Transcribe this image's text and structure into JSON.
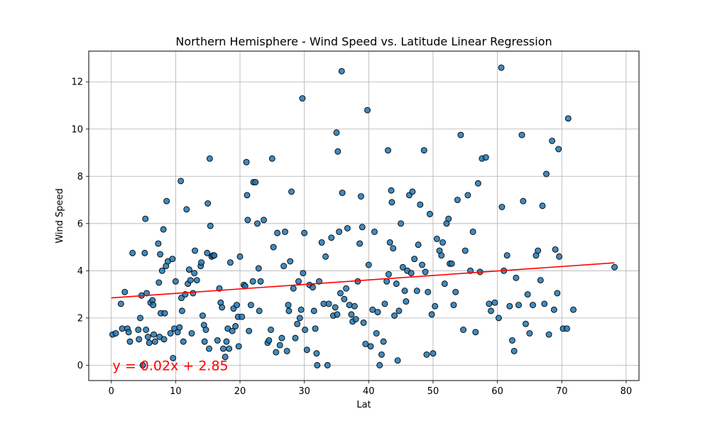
{
  "chart_data": {
    "type": "scatter",
    "title": "Northern Hemisphere - Wind Speed vs. Latitude Linear Regression",
    "xlabel": "Lat",
    "ylabel": "Wind Speed",
    "xlim": [
      -3.5,
      82
    ],
    "ylim": [
      -0.65,
      13.3
    ],
    "xticks": [
      0,
      10,
      20,
      30,
      40,
      50,
      60,
      70,
      80
    ],
    "yticks": [
      0,
      2,
      4,
      6,
      8,
      10,
      12
    ],
    "grid": true,
    "point_color": "#1f77b4",
    "point_edge_color": "#000000",
    "line_color": "#ff0000",
    "regression": {
      "slope": 0.019,
      "intercept": 2.85,
      "x_range": [
        0.0,
        78.2
      ],
      "equation_label": "y = 0.02x + 2.85",
      "label_anchor": {
        "x": 0.2,
        "y": 0.0
      }
    },
    "points": [
      [
        0.2,
        1.3
      ],
      [
        0.7,
        1.35
      ],
      [
        1.5,
        2.6
      ],
      [
        1.7,
        1.55
      ],
      [
        2.1,
        3.1
      ],
      [
        2.5,
        1.55
      ],
      [
        2.7,
        1.4
      ],
      [
        2.9,
        1.0
      ],
      [
        3.3,
        4.75
      ],
      [
        4.2,
        1.5
      ],
      [
        4.3,
        1.1
      ],
      [
        4.5,
        2.0
      ],
      [
        4.7,
        2.95
      ],
      [
        4.9,
        0.0
      ],
      [
        5.2,
        4.75
      ],
      [
        5.3,
        6.2
      ],
      [
        5.4,
        1.5
      ],
      [
        5.5,
        3.05
      ],
      [
        5.7,
        1.2
      ],
      [
        5.9,
        0.95
      ],
      [
        6.1,
        2.65
      ],
      [
        6.4,
        2.75
      ],
      [
        6.5,
        2.55
      ],
      [
        6.6,
        1.3
      ],
      [
        6.8,
        1.0
      ],
      [
        7.3,
        5.15
      ],
      [
        7.4,
        3.5
      ],
      [
        7.5,
        1.2
      ],
      [
        7.6,
        4.7
      ],
      [
        7.7,
        2.2
      ],
      [
        7.9,
        4.0
      ],
      [
        8.1,
        5.75
      ],
      [
        8.2,
        1.1
      ],
      [
        8.3,
        2.2
      ],
      [
        8.5,
        4.2
      ],
      [
        8.6,
        6.95
      ],
      [
        8.8,
        4.4
      ],
      [
        9.2,
        1.35
      ],
      [
        9.5,
        4.5
      ],
      [
        9.6,
        0.3
      ],
      [
        9.8,
        1.55
      ],
      [
        10.0,
        3.55
      ],
      [
        10.3,
        1.4
      ],
      [
        10.6,
        1.6
      ],
      [
        10.8,
        7.8
      ],
      [
        10.9,
        2.85
      ],
      [
        11.0,
        2.3
      ],
      [
        11.2,
        1.0
      ],
      [
        11.5,
        3.0
      ],
      [
        11.7,
        6.6
      ],
      [
        11.9,
        3.45
      ],
      [
        12.1,
        4.05
      ],
      [
        12.3,
        3.6
      ],
      [
        12.5,
        1.35
      ],
      [
        12.7,
        3.05
      ],
      [
        12.9,
        3.9
      ],
      [
        13.0,
        4.85
      ],
      [
        13.3,
        3.6
      ],
      [
        13.9,
        4.2
      ],
      [
        14.0,
        4.35
      ],
      [
        14.2,
        2.1
      ],
      [
        14.4,
        1.7
      ],
      [
        14.5,
        1.0
      ],
      [
        14.7,
        1.5
      ],
      [
        14.9,
        4.75
      ],
      [
        15.0,
        6.85
      ],
      [
        15.2,
        0.7
      ],
      [
        15.3,
        8.75
      ],
      [
        15.4,
        5.9
      ],
      [
        15.6,
        4.6
      ],
      [
        15.8,
        4.65
      ],
      [
        16.0,
        4.65
      ],
      [
        16.5,
        1.05
      ],
      [
        16.8,
        3.25
      ],
      [
        17.0,
        2.65
      ],
      [
        17.2,
        2.45
      ],
      [
        17.4,
        0.7
      ],
      [
        17.7,
        0.35
      ],
      [
        17.9,
        1.0
      ],
      [
        18.1,
        1.55
      ],
      [
        18.3,
        0.7
      ],
      [
        18.5,
        4.35
      ],
      [
        18.8,
        1.45
      ],
      [
        19.0,
        2.4
      ],
      [
        19.3,
        1.65
      ],
      [
        19.5,
        2.55
      ],
      [
        19.7,
        2.05
      ],
      [
        19.8,
        0.8
      ],
      [
        20.0,
        4.6
      ],
      [
        20.3,
        2.05
      ],
      [
        20.6,
        3.4
      ],
      [
        20.8,
        3.35
      ],
      [
        21.0,
        8.6
      ],
      [
        21.1,
        7.2
      ],
      [
        21.2,
        6.15
      ],
      [
        21.4,
        1.45
      ],
      [
        21.7,
        2.55
      ],
      [
        22.0,
        3.55
      ],
      [
        22.1,
        7.75
      ],
      [
        22.4,
        7.75
      ],
      [
        22.7,
        6.0
      ],
      [
        22.9,
        4.1
      ],
      [
        23.0,
        2.3
      ],
      [
        23.2,
        3.55
      ],
      [
        23.7,
        6.15
      ],
      [
        24.3,
        0.95
      ],
      [
        24.5,
        1.05
      ],
      [
        24.8,
        1.5
      ],
      [
        25.0,
        8.75
      ],
      [
        25.2,
        5.0
      ],
      [
        25.6,
        0.55
      ],
      [
        25.8,
        5.6
      ],
      [
        26.2,
        0.85
      ],
      [
        26.5,
        1.15
      ],
      [
        26.8,
        4.2
      ],
      [
        27.0,
        5.65
      ],
      [
        27.3,
        0.6
      ],
      [
        27.5,
        2.55
      ],
      [
        27.6,
        2.3
      ],
      [
        27.8,
        4.4
      ],
      [
        28.0,
        7.35
      ],
      [
        28.3,
        3.25
      ],
      [
        28.6,
        1.15
      ],
      [
        28.9,
        1.75
      ],
      [
        29.1,
        3.55
      ],
      [
        29.3,
        2.0
      ],
      [
        29.5,
        2.35
      ],
      [
        29.7,
        11.3
      ],
      [
        29.8,
        3.9
      ],
      [
        30.0,
        5.6
      ],
      [
        30.1,
        1.5
      ],
      [
        30.4,
        0.65
      ],
      [
        30.8,
        3.4
      ],
      [
        31.3,
        3.3
      ],
      [
        31.5,
        2.3
      ],
      [
        31.7,
        1.55
      ],
      [
        31.9,
        0.5
      ],
      [
        32.0,
        0.0
      ],
      [
        32.3,
        3.55
      ],
      [
        32.7,
        5.2
      ],
      [
        33.0,
        2.6
      ],
      [
        33.3,
        4.6
      ],
      [
        33.6,
        0.0
      ],
      [
        33.8,
        2.6
      ],
      [
        34.2,
        5.4
      ],
      [
        34.5,
        2.1
      ],
      [
        34.8,
        2.45
      ],
      [
        35.0,
        9.85
      ],
      [
        35.1,
        2.15
      ],
      [
        35.2,
        9.05
      ],
      [
        35.4,
        5.65
      ],
      [
        35.6,
        3.05
      ],
      [
        35.8,
        12.45
      ],
      [
        35.9,
        7.3
      ],
      [
        36.2,
        2.8
      ],
      [
        36.5,
        3.25
      ],
      [
        36.7,
        5.8
      ],
      [
        37.0,
        2.55
      ],
      [
        37.3,
        2.15
      ],
      [
        37.5,
        1.85
      ],
      [
        37.8,
        2.5
      ],
      [
        38.0,
        1.95
      ],
      [
        38.3,
        3.55
      ],
      [
        38.6,
        5.15
      ],
      [
        38.8,
        7.15
      ],
      [
        39.0,
        5.85
      ],
      [
        39.2,
        1.8
      ],
      [
        39.5,
        0.9
      ],
      [
        39.8,
        10.8
      ],
      [
        40.0,
        4.25
      ],
      [
        40.3,
        0.8
      ],
      [
        40.6,
        2.35
      ],
      [
        40.9,
        5.65
      ],
      [
        41.2,
        1.35
      ],
      [
        41.4,
        2.25
      ],
      [
        41.7,
        0.0
      ],
      [
        42.0,
        0.45
      ],
      [
        42.3,
        1.0
      ],
      [
        42.5,
        2.6
      ],
      [
        42.8,
        3.55
      ],
      [
        43.0,
        9.1
      ],
      [
        43.1,
        3.85
      ],
      [
        43.3,
        5.2
      ],
      [
        43.5,
        7.4
      ],
      [
        43.6,
        6.9
      ],
      [
        43.8,
        4.95
      ],
      [
        44.0,
        2.1
      ],
      [
        44.3,
        3.45
      ],
      [
        44.5,
        0.2
      ],
      [
        44.7,
        2.3
      ],
      [
        45.0,
        6.0
      ],
      [
        45.3,
        4.15
      ],
      [
        45.6,
        3.15
      ],
      [
        45.8,
        2.7
      ],
      [
        46.0,
        4.0
      ],
      [
        46.3,
        7.2
      ],
      [
        46.6,
        3.9
      ],
      [
        46.8,
        7.35
      ],
      [
        47.1,
        4.5
      ],
      [
        47.5,
        3.15
      ],
      [
        47.7,
        5.1
      ],
      [
        48.0,
        6.8
      ],
      [
        48.3,
        4.25
      ],
      [
        48.6,
        9.1
      ],
      [
        48.8,
        3.95
      ],
      [
        49.0,
        0.45
      ],
      [
        49.2,
        3.1
      ],
      [
        49.5,
        6.4
      ],
      [
        49.8,
        2.15
      ],
      [
        50.0,
        0.5
      ],
      [
        50.3,
        2.5
      ],
      [
        50.6,
        5.35
      ],
      [
        51.0,
        4.85
      ],
      [
        51.3,
        4.65
      ],
      [
        51.5,
        5.2
      ],
      [
        51.8,
        3.45
      ],
      [
        52.1,
        6.0
      ],
      [
        52.4,
        6.2
      ],
      [
        52.6,
        4.3
      ],
      [
        52.9,
        4.3
      ],
      [
        53.2,
        2.55
      ],
      [
        53.5,
        3.1
      ],
      [
        53.8,
        7.0
      ],
      [
        54.3,
        9.75
      ],
      [
        54.7,
        1.5
      ],
      [
        55.0,
        4.85
      ],
      [
        55.4,
        7.2
      ],
      [
        55.8,
        4.0
      ],
      [
        56.2,
        5.65
      ],
      [
        56.6,
        1.4
      ],
      [
        57.0,
        7.7
      ],
      [
        57.3,
        3.95
      ],
      [
        57.6,
        8.75
      ],
      [
        58.2,
        8.8
      ],
      [
        58.7,
        2.6
      ],
      [
        59.0,
        2.3
      ],
      [
        59.6,
        2.65
      ],
      [
        60.2,
        2.0
      ],
      [
        60.6,
        12.6
      ],
      [
        60.7,
        6.7
      ],
      [
        61.0,
        4.0
      ],
      [
        61.5,
        4.65
      ],
      [
        61.9,
        2.5
      ],
      [
        62.3,
        1.05
      ],
      [
        62.6,
        0.6
      ],
      [
        62.9,
        3.7
      ],
      [
        63.3,
        2.55
      ],
      [
        63.8,
        9.75
      ],
      [
        64.0,
        6.95
      ],
      [
        64.4,
        1.75
      ],
      [
        64.7,
        3.0
      ],
      [
        65.0,
        1.35
      ],
      [
        65.5,
        2.55
      ],
      [
        66.0,
        4.65
      ],
      [
        66.3,
        4.85
      ],
      [
        66.7,
        3.6
      ],
      [
        67.0,
        6.75
      ],
      [
        67.3,
        2.6
      ],
      [
        67.6,
        8.1
      ],
      [
        68.0,
        1.3
      ],
      [
        68.5,
        9.5
      ],
      [
        68.8,
        2.35
      ],
      [
        69.0,
        4.9
      ],
      [
        69.3,
        3.05
      ],
      [
        69.5,
        9.15
      ],
      [
        69.6,
        4.6
      ],
      [
        70.2,
        1.55
      ],
      [
        70.8,
        1.55
      ],
      [
        71.0,
        10.45
      ],
      [
        71.8,
        2.35
      ],
      [
        78.2,
        4.15
      ]
    ]
  }
}
